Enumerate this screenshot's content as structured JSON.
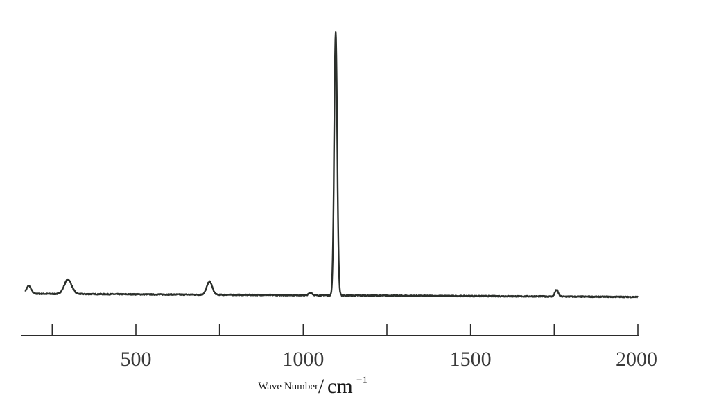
{
  "chart_data": {
    "type": "line",
    "title": "",
    "xlabel": "Wave Number",
    "xlabel_unit": "cm",
    "xlabel_unit_exponent": "−1",
    "ylabel": "",
    "xlim": [
      170,
      2000
    ],
    "grid": false,
    "legend": "none",
    "line_color": "#2b2f2b",
    "major_ticks": [
      500,
      1000,
      1500,
      2000
    ],
    "minor_ticks": [
      250,
      750,
      1250,
      1750
    ],
    "tick_labels": [
      "500",
      "1000",
      "1500",
      "2000"
    ],
    "baseline": {
      "start": 0.0,
      "end": -0.012
    },
    "peaks": [
      {
        "x": 180,
        "height": 0.03,
        "width": 7
      },
      {
        "x": 297,
        "height": 0.055,
        "width": 11
      },
      {
        "x": 720,
        "height": 0.05,
        "width": 8
      },
      {
        "x": 1022,
        "height": 0.01,
        "width": 5
      },
      {
        "x": 1097,
        "height": 1.0,
        "width": 4.5
      },
      {
        "x": 1757,
        "height": 0.025,
        "width": 5
      }
    ]
  }
}
